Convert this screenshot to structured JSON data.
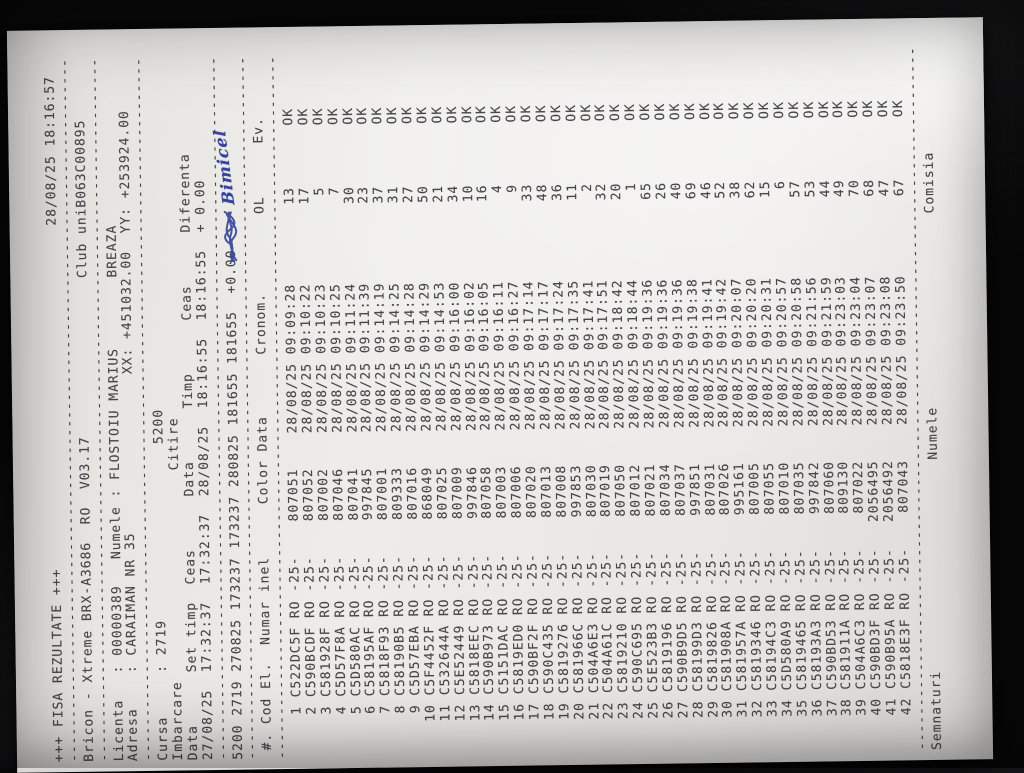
{
  "photo": {
    "background_color": "#0a0a0b",
    "paper_color": "#e9e7e4",
    "ink_color": "#47474b",
    "pen_ink_color": "#36459b",
    "orientation": "page rotated 90deg counter-clockwise in photo"
  },
  "document": {
    "title_line": {
      "title": "+++ FISA REZULTATE +++",
      "printed_at": "28/08/25 18:16:57"
    },
    "device_line": {
      "device": "Bricon - Xtreme BRX-A3686  RO  V03.17",
      "club": "Club uniB063C00895"
    },
    "licenta_line": {
      "label": "Licenta",
      "value": "00000389",
      "name_label": "Numele",
      "name": "FLOSTOIU MARIUS",
      "city": "BREAZA"
    },
    "adresa_line": {
      "label": "Adresa",
      "value": "CARAIMAN NR 35",
      "xx": "XX: +451032.00",
      "yy": "YY: +253924.00"
    },
    "cursa_line": {
      "label": "Cursa",
      "value": "2719",
      "concurs": "5200"
    },
    "imbarcare_line": {
      "label": "Imbarcare",
      "citire_label": "Citire"
    },
    "timing_header": "Data      Set timp  Ceas      Data      Timp      Ceas      Diferenta",
    "timing_values": "27/08/25  17:32:37  17:32:37  28/08/25  18:16:55  18:16:55  + 0.00",
    "summary_line": "5200 2719 270825 173237 173237 280825 181655 181655  +0.00",
    "annotation": {
      "text": "Bimicel",
      "note": "handwritten blue ink over a scribbled-out word"
    },
    "footer_line": {
      "semnaturi": "Semnaturi",
      "numele": "Numele",
      "comisia": "Comisia"
    }
  },
  "table": {
    "header": {
      "num": "#.",
      "cod": "Cod El.",
      "inel": "Numar inel",
      "color": "Color",
      "data": "Data",
      "cronom": "Cronom.",
      "ol": "OL",
      "ev": "Ev."
    },
    "rows": [
      {
        "n": "1",
        "cod": "C522DC5F",
        "tara": "RO",
        "serie": "-25-",
        "inel": "807051",
        "data": "28/08/25",
        "cronom": "09:09:28",
        "ol": "13",
        "ev": "OK"
      },
      {
        "n": "2",
        "cod": "C590BCDF",
        "tara": "RO",
        "serie": "-25-",
        "inel": "807052",
        "data": "28/08/25",
        "cronom": "09:10:22",
        "ol": "17",
        "ev": "OK"
      },
      {
        "n": "3",
        "cod": "C581928F",
        "tara": "RO",
        "serie": "-25-",
        "inel": "807002",
        "data": "28/08/25",
        "cronom": "09:10:23",
        "ol": "5",
        "ev": "OK"
      },
      {
        "n": "4",
        "cod": "C5D57F8A",
        "tara": "RO",
        "serie": "-25-",
        "inel": "807046",
        "data": "28/08/25",
        "cronom": "09:10:25",
        "ol": "7",
        "ev": "OK"
      },
      {
        "n": "5",
        "cod": "C5D580AC",
        "tara": "RO",
        "serie": "-25-",
        "inel": "807041",
        "data": "28/08/25",
        "cronom": "09:11:24",
        "ol": "30",
        "ev": "OK"
      },
      {
        "n": "6",
        "cod": "C58195AF",
        "tara": "RO",
        "serie": "-25-",
        "inel": "997845",
        "data": "28/08/25",
        "cronom": "09:11:39",
        "ol": "23",
        "ev": "OK"
      },
      {
        "n": "7",
        "cod": "C5818F93",
        "tara": "RO",
        "serie": "-25-",
        "inel": "807001",
        "data": "28/08/25",
        "cronom": "09:14:19",
        "ol": "37",
        "ev": "OK"
      },
      {
        "n": "8",
        "cod": "C58190B5",
        "tara": "RO",
        "serie": "-25-",
        "inel": "809333",
        "data": "28/08/25",
        "cronom": "09:14:25",
        "ol": "31",
        "ev": "OK"
      },
      {
        "n": "9",
        "cod": "C5D57EBA",
        "tara": "RO",
        "serie": "-25-",
        "inel": "807016",
        "data": "28/08/25",
        "cronom": "09:14:28",
        "ol": "27",
        "ev": "OK"
      },
      {
        "n": "10",
        "cod": "C5F4452F",
        "tara": "RO",
        "serie": "-25-",
        "inel": "868049",
        "data": "28/08/25",
        "cronom": "09:14:29",
        "ol": "50",
        "ev": "OK"
      },
      {
        "n": "11",
        "cod": "C532644A",
        "tara": "RO",
        "serie": "-25-",
        "inel": "807025",
        "data": "28/08/25",
        "cronom": "09:14:53",
        "ol": "21",
        "ev": "OK"
      },
      {
        "n": "12",
        "cod": "C5E52449",
        "tara": "RO",
        "serie": "-25-",
        "inel": "807009",
        "data": "28/08/25",
        "cronom": "09:16:00",
        "ol": "34",
        "ev": "OK"
      },
      {
        "n": "13",
        "cod": "C5818EEC",
        "tara": "RO",
        "serie": "-25-",
        "inel": "997846",
        "data": "28/08/25",
        "cronom": "09:16:02",
        "ol": "10",
        "ev": "OK"
      },
      {
        "n": "14",
        "cod": "C590B973",
        "tara": "RO",
        "serie": "-25-",
        "inel": "807058",
        "data": "28/08/25",
        "cronom": "09:16:05",
        "ol": "16",
        "ev": "OK"
      },
      {
        "n": "15",
        "cod": "C5151DAC",
        "tara": "RO",
        "serie": "-25-",
        "inel": "807003",
        "data": "28/08/25",
        "cronom": "09:16:11",
        "ol": "4",
        "ev": "OK"
      },
      {
        "n": "16",
        "cod": "C5819ED0",
        "tara": "RO",
        "serie": "-25-",
        "inel": "807006",
        "data": "28/08/25",
        "cronom": "09:16:27",
        "ol": "9",
        "ev": "OK"
      },
      {
        "n": "17",
        "cod": "C590BF2F",
        "tara": "RO",
        "serie": "-25-",
        "inel": "807020",
        "data": "28/08/25",
        "cronom": "09:17:14",
        "ol": "33",
        "ev": "OK"
      },
      {
        "n": "18",
        "cod": "C590C435",
        "tara": "RO",
        "serie": "-25-",
        "inel": "807013",
        "data": "28/08/25",
        "cronom": "09:17:17",
        "ol": "48",
        "ev": "OK"
      },
      {
        "n": "19",
        "cod": "C5819276",
        "tara": "RO",
        "serie": "-25-",
        "inel": "807008",
        "data": "28/08/25",
        "cronom": "09:17:24",
        "ol": "36",
        "ev": "OK"
      },
      {
        "n": "20",
        "cod": "C581966C",
        "tara": "RO",
        "serie": "-25-",
        "inel": "997853",
        "data": "28/08/25",
        "cronom": "09:17:35",
        "ol": "11",
        "ev": "OK"
      },
      {
        "n": "21",
        "cod": "C504A6E3",
        "tara": "RO",
        "serie": "-25-",
        "inel": "807030",
        "data": "28/08/25",
        "cronom": "09:17:41",
        "ol": "2",
        "ev": "OK"
      },
      {
        "n": "22",
        "cod": "C504A61C",
        "tara": "RO",
        "serie": "-25-",
        "inel": "807019",
        "data": "28/08/25",
        "cronom": "09:17:51",
        "ol": "32",
        "ev": "OK"
      },
      {
        "n": "23",
        "cod": "C5819210",
        "tara": "RO",
        "serie": "-25-",
        "inel": "807050",
        "data": "28/08/25",
        "cronom": "09:18:42",
        "ol": "20",
        "ev": "OK"
      },
      {
        "n": "24",
        "cod": "C590C695",
        "tara": "RO",
        "serie": "-25-",
        "inel": "807012",
        "data": "28/08/25",
        "cronom": "09:18:44",
        "ol": "1",
        "ev": "OK"
      },
      {
        "n": "25",
        "cod": "C5E523B3",
        "tara": "RO",
        "serie": "-25-",
        "inel": "807021",
        "data": "28/08/25",
        "cronom": "09:19:36",
        "ol": "65",
        "ev": "OK"
      },
      {
        "n": "26",
        "cod": "C5819196",
        "tara": "RO",
        "serie": "-25-",
        "inel": "807034",
        "data": "28/08/25",
        "cronom": "09:19:36",
        "ol": "26",
        "ev": "OK"
      },
      {
        "n": "27",
        "cod": "C590B9D5",
        "tara": "RO",
        "serie": "-25-",
        "inel": "807037",
        "data": "28/08/25",
        "cronom": "09:19:36",
        "ol": "40",
        "ev": "OK"
      },
      {
        "n": "28",
        "cod": "C58199D3",
        "tara": "RO",
        "serie": "-25-",
        "inel": "997851",
        "data": "28/08/25",
        "cronom": "09:19:38",
        "ol": "69",
        "ev": "OK"
      },
      {
        "n": "29",
        "cod": "C5819826",
        "tara": "RO",
        "serie": "-25-",
        "inel": "807031",
        "data": "28/08/25",
        "cronom": "09:19:41",
        "ol": "46",
        "ev": "OK"
      },
      {
        "n": "30",
        "cod": "C581908A",
        "tara": "RO",
        "serie": "-25-",
        "inel": "807026",
        "data": "28/08/25",
        "cronom": "09:19:42",
        "ol": "52",
        "ev": "OK"
      },
      {
        "n": "31",
        "cod": "C581957A",
        "tara": "RO",
        "serie": "-25-",
        "inel": "995161",
        "data": "28/08/25",
        "cronom": "09:20:07",
        "ol": "38",
        "ev": "OK"
      },
      {
        "n": "32",
        "cod": "C5819346",
        "tara": "RO",
        "serie": "-25-",
        "inel": "807005",
        "data": "28/08/25",
        "cronom": "09:20:20",
        "ol": "62",
        "ev": "OK"
      },
      {
        "n": "33",
        "cod": "C58194C3",
        "tara": "RO",
        "serie": "-25-",
        "inel": "807055",
        "data": "28/08/25",
        "cronom": "09:20:31",
        "ol": "15",
        "ev": "OK"
      },
      {
        "n": "34",
        "cod": "C5D580A9",
        "tara": "RO",
        "serie": "-25-",
        "inel": "807010",
        "data": "28/08/25",
        "cronom": "09:20:57",
        "ol": "6",
        "ev": "OK"
      },
      {
        "n": "35",
        "cod": "C5819465",
        "tara": "RO",
        "serie": "-25-",
        "inel": "807035",
        "data": "28/08/25",
        "cronom": "09:20:58",
        "ol": "57",
        "ev": "OK"
      },
      {
        "n": "36",
        "cod": "C58193A3",
        "tara": "RO",
        "serie": "-25-",
        "inel": "997842",
        "data": "28/08/25",
        "cronom": "09:21:56",
        "ol": "53",
        "ev": "OK"
      },
      {
        "n": "37",
        "cod": "C590BD53",
        "tara": "RO",
        "serie": "-25-",
        "inel": "807060",
        "data": "28/08/25",
        "cronom": "09:21:59",
        "ol": "44",
        "ev": "OK"
      },
      {
        "n": "38",
        "cod": "C581911A",
        "tara": "RO",
        "serie": "-25-",
        "inel": "809130",
        "data": "28/08/25",
        "cronom": "09:23:03",
        "ol": "49",
        "ev": "OK"
      },
      {
        "n": "39",
        "cod": "C504A6C3",
        "tara": "RO",
        "serie": "-25-",
        "inel": "807022",
        "data": "28/08/25",
        "cronom": "09:23:04",
        "ol": "70",
        "ev": "OK"
      },
      {
        "n": "40",
        "cod": "C590BD3F",
        "tara": "RO",
        "serie": "-25-",
        "inel": "2056495",
        "data": "28/08/25",
        "cronom": "09:23:07",
        "ol": "68",
        "ev": "OK"
      },
      {
        "n": "41",
        "cod": "C590B95A",
        "tara": "RO",
        "serie": "-25-",
        "inel": "2056492",
        "data": "28/08/25",
        "cronom": "09:23:08",
        "ol": "47",
        "ev": "OK"
      },
      {
        "n": "42",
        "cod": "C5818E3F",
        "tara": "RO",
        "serie": "-25-",
        "inel": "807043",
        "data": "28/08/25",
        "cronom": "09:23:50",
        "ol": "67",
        "ev": "OK"
      }
    ]
  }
}
